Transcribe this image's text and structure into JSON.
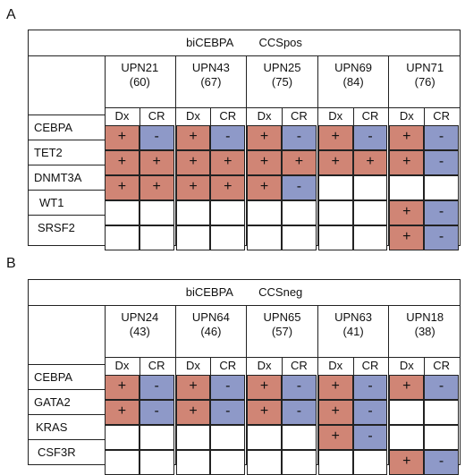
{
  "panels": [
    {
      "letter": "A",
      "title_left": "biCEBPA",
      "title_right": "CCSpos",
      "genes": [
        "CEBPA",
        "TET2",
        "DNMT3A",
        "WT1",
        "SRSF2"
      ],
      "phases": [
        "Dx",
        "CR"
      ],
      "patients": [
        {
          "name": "UPN21",
          "n": "(60)",
          "cells": [
            [
              "+",
              "-"
            ],
            [
              "+",
              "+"
            ],
            [
              "+",
              "+"
            ],
            [
              "",
              ""
            ],
            [
              "",
              ""
            ]
          ]
        },
        {
          "name": "UPN43",
          "n": "(67)",
          "cells": [
            [
              "+",
              "-"
            ],
            [
              "+",
              "+"
            ],
            [
              "+",
              "+"
            ],
            [
              "",
              ""
            ],
            [
              "",
              ""
            ]
          ]
        },
        {
          "name": "UPN25",
          "n": "(75)",
          "cells": [
            [
              "+",
              "-"
            ],
            [
              "+",
              "+"
            ],
            [
              "+",
              "-"
            ],
            [
              "",
              ""
            ],
            [
              "",
              ""
            ]
          ]
        },
        {
          "name": "UPN69",
          "n": "(84)",
          "cells": [
            [
              "+",
              "-"
            ],
            [
              "+",
              "+"
            ],
            [
              "",
              ""
            ],
            [
              "",
              ""
            ],
            [
              "",
              ""
            ]
          ]
        },
        {
          "name": "UPN71",
          "n": "(76)",
          "cells": [
            [
              "+",
              "-"
            ],
            [
              "+",
              "-"
            ],
            [
              "",
              ""
            ],
            [
              "+",
              "-"
            ],
            [
              "+",
              "-"
            ]
          ]
        }
      ]
    },
    {
      "letter": "B",
      "title_left": "biCEBPA",
      "title_right": "CCSneg",
      "genes": [
        "CEBPA",
        "GATA2",
        "KRAS",
        "CSF3R"
      ],
      "phases": [
        "Dx",
        "CR"
      ],
      "patients": [
        {
          "name": "UPN24",
          "n": "(43)",
          "cells": [
            [
              "+",
              "-"
            ],
            [
              "+",
              "-"
            ],
            [
              "",
              ""
            ],
            [
              "",
              ""
            ]
          ]
        },
        {
          "name": "UPN64",
          "n": "(46)",
          "cells": [
            [
              "+",
              "-"
            ],
            [
              "+",
              "-"
            ],
            [
              "",
              ""
            ],
            [
              "",
              ""
            ]
          ]
        },
        {
          "name": "UPN65",
          "n": "(57)",
          "cells": [
            [
              "+",
              "-"
            ],
            [
              "+",
              "-"
            ],
            [
              "",
              ""
            ],
            [
              "",
              ""
            ]
          ]
        },
        {
          "name": "UPN63",
          "n": "(41)",
          "cells": [
            [
              "+",
              "-"
            ],
            [
              "+",
              "-"
            ],
            [
              "+",
              "-"
            ],
            [
              "",
              ""
            ]
          ]
        },
        {
          "name": "UPN18",
          "n": "(38)",
          "cells": [
            [
              "+",
              "-"
            ],
            [
              "",
              ""
            ],
            [
              "",
              ""
            ],
            [
              "+",
              "-"
            ]
          ]
        }
      ]
    }
  ],
  "colors": {
    "positive": "#d08575",
    "negative": "#8e99c8"
  }
}
